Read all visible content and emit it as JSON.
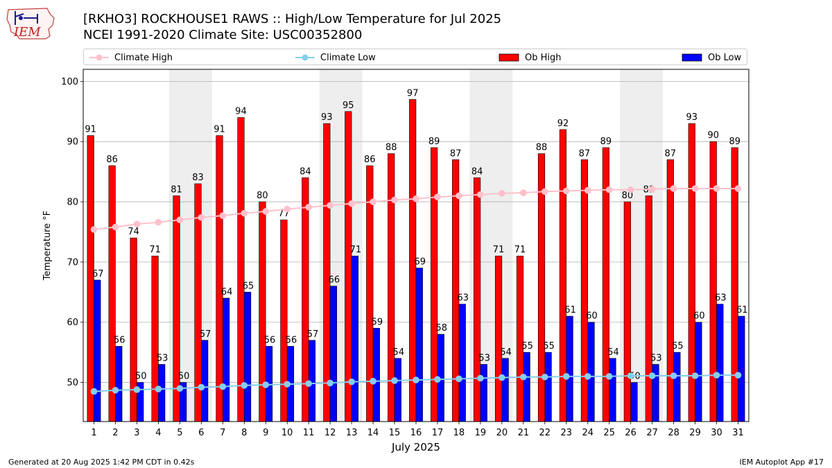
{
  "title_line1": "[RKHO3] ROCKHOUSE1 RAWS :: High/Low Temperature for Jul 2025",
  "title_line2": "NCEI 1991-2020 Climate Site: USC00352800",
  "logo_text": "IEM",
  "footer_left": "Generated at 20 Aug 2025 1:42 PM CDT in 0.42s",
  "footer_right": "IEM Autoplot App #17",
  "colors": {
    "ob_high": "#ff0000",
    "ob_low": "#0000ff",
    "climate_high": "#ffc0cb",
    "climate_low": "#87ceeb",
    "weekend_shade": "#eeeeee",
    "grid": "#b0b0b0"
  },
  "legend": [
    "Climate High",
    "Climate Low",
    "Ob High",
    "Ob Low"
  ],
  "chart_data": {
    "type": "bar",
    "xlabel": "July 2025",
    "ylabel": "Temperature °F",
    "ylim": [
      43.5,
      102
    ],
    "yticks": [
      50,
      60,
      70,
      80,
      90,
      100
    ],
    "grid": "horizontal",
    "legend_position": "top",
    "categories": [
      "1",
      "2",
      "3",
      "4",
      "5",
      "6",
      "7",
      "8",
      "9",
      "10",
      "11",
      "12",
      "13",
      "14",
      "15",
      "16",
      "17",
      "18",
      "19",
      "20",
      "21",
      "22",
      "23",
      "24",
      "25",
      "26",
      "27",
      "28",
      "29",
      "30",
      "31"
    ],
    "shaded_days": [
      5,
      6,
      12,
      13,
      19,
      20,
      26,
      27
    ],
    "series": [
      {
        "name": "Ob High",
        "kind": "bar",
        "values": [
          91,
          86,
          74,
          71,
          81,
          83,
          91,
          94,
          80,
          77,
          84,
          93,
          95,
          86,
          88,
          97,
          89,
          87,
          84,
          71,
          71,
          88,
          92,
          87,
          89,
          80,
          81,
          87,
          93,
          90,
          89
        ]
      },
      {
        "name": "Ob Low",
        "kind": "bar",
        "values": [
          67,
          56,
          50,
          53,
          50,
          57,
          64,
          65,
          56,
          56,
          57,
          66,
          71,
          59,
          54,
          69,
          58,
          63,
          53,
          54,
          55,
          55,
          61,
          60,
          54,
          50,
          53,
          55,
          60,
          63,
          61
        ]
      },
      {
        "name": "Climate High",
        "kind": "line",
        "values": [
          75.4,
          75.8,
          76.3,
          76.6,
          77.0,
          77.4,
          77.7,
          78.1,
          78.4,
          78.8,
          79.1,
          79.4,
          79.7,
          80.0,
          80.3,
          80.5,
          80.8,
          81.0,
          81.2,
          81.4,
          81.5,
          81.7,
          81.8,
          81.9,
          82.0,
          82.0,
          82.1,
          82.2,
          82.2,
          82.2,
          82.2
        ]
      },
      {
        "name": "Climate Low",
        "kind": "line",
        "values": [
          48.5,
          48.7,
          48.8,
          48.9,
          49.0,
          49.2,
          49.3,
          49.5,
          49.6,
          49.7,
          49.8,
          49.9,
          50.1,
          50.2,
          50.3,
          50.4,
          50.5,
          50.6,
          50.7,
          50.8,
          50.9,
          50.9,
          51.0,
          51.0,
          51.0,
          51.1,
          51.1,
          51.1,
          51.1,
          51.2,
          51.2
        ]
      }
    ]
  }
}
